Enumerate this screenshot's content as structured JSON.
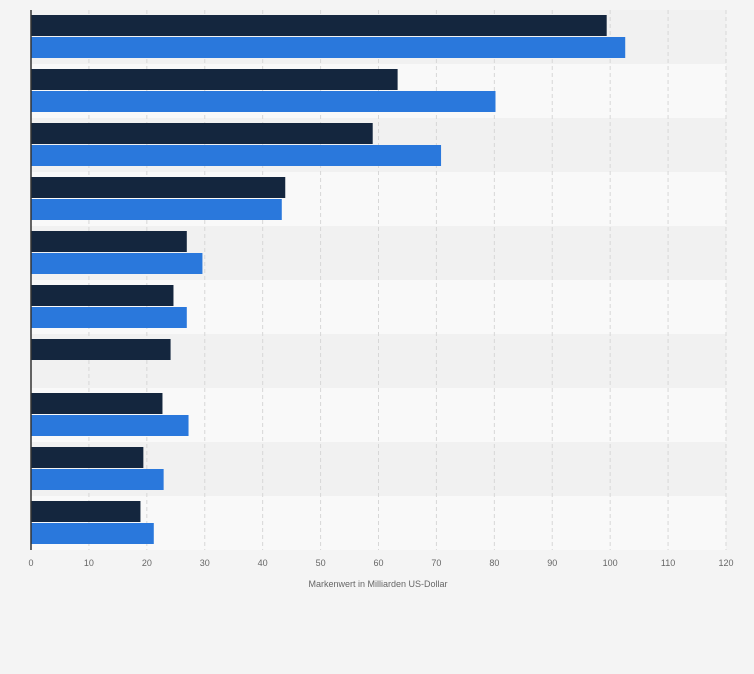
{
  "chart_data": {
    "type": "bar",
    "orientation": "horizontal",
    "categories": [
      "",
      "",
      "",
      "",
      "",
      "",
      "",
      "",
      "",
      ""
    ],
    "series": [
      {
        "values": [
          99.4,
          63.3,
          59.0,
          43.9,
          26.9,
          24.6,
          24.1,
          22.7,
          19.4,
          18.9
        ]
      },
      {
        "values": [
          102.6,
          80.2,
          70.8,
          43.3,
          29.6,
          26.9,
          null,
          27.2,
          22.9,
          21.2
        ]
      }
    ],
    "series_colors": [
      "#14263e",
      "#2a78dc"
    ],
    "xlabel": "Markenwert in Milliarden US-Dollar",
    "ylabel": "",
    "xlim": [
      0,
      120
    ],
    "xticks": [
      0,
      10,
      20,
      30,
      40,
      50,
      60,
      70,
      80,
      90,
      100,
      110,
      120
    ],
    "grid": true,
    "legend": "none"
  },
  "colors": {
    "background": "#f4f4f4",
    "plot_band_light": "#f9f9f9",
    "plot_band_dark": "#f1f1f1",
    "gridline": "#d7d7d7",
    "axis": "#333333",
    "tick_text": "#666666"
  }
}
